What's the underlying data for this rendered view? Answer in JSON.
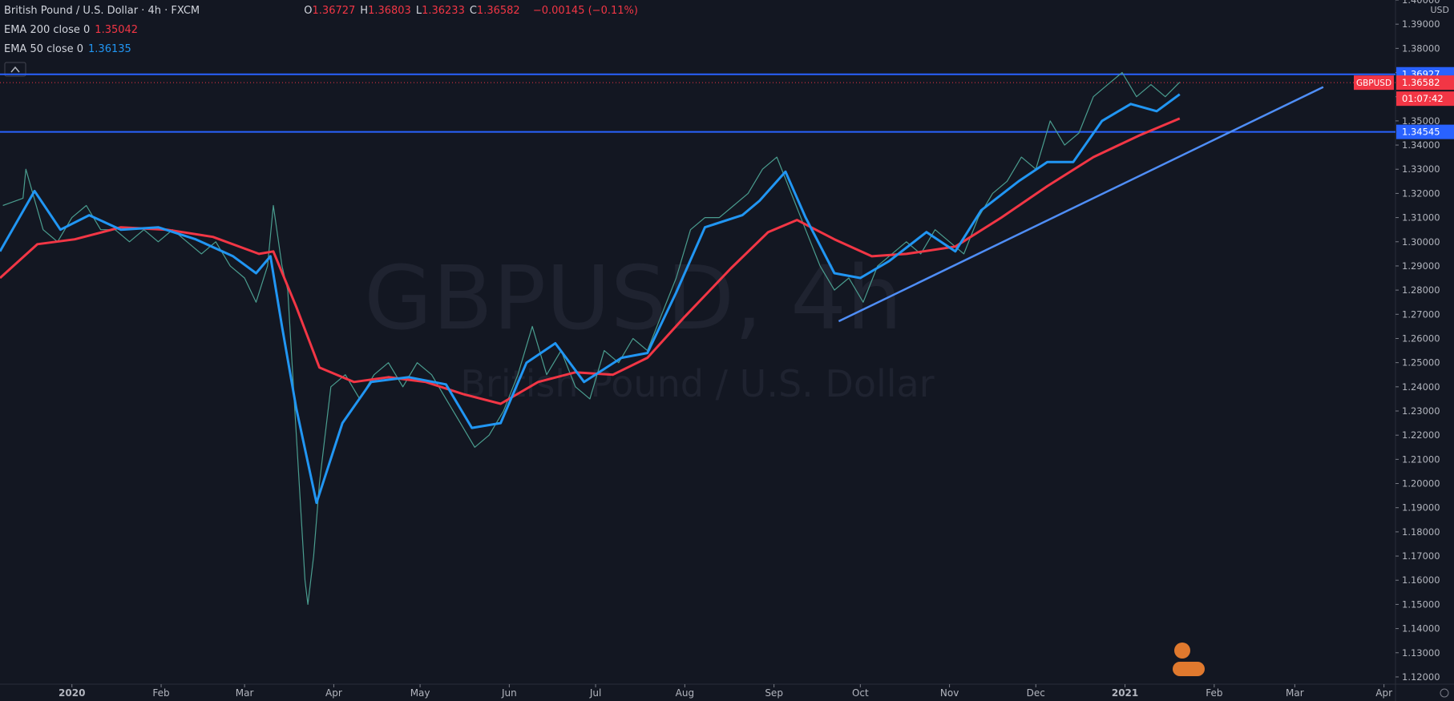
{
  "chart_data": {
    "type": "line",
    "title": "British Pound / U.S. Dollar · 4h · FXCM",
    "ohlc": [
      {
        "label": "O",
        "value": 1.36727
      },
      {
        "label": "H",
        "value": 1.36803
      },
      {
        "label": "L",
        "value": 1.36233
      },
      {
        "label": "C",
        "value": 1.36582
      }
    ],
    "change": "−0.00145 (−0.11%)",
    "watermark": {
      "symbol": "GBPUSD, 4h",
      "description": "British Pound / U.S. Dollar"
    },
    "currency": "USD",
    "countdown": "01:07:42",
    "xlim": [
      -25,
      460
    ],
    "xticks": [
      {
        "value": 0,
        "label": "2020"
      },
      {
        "value": 31,
        "label": "Feb"
      },
      {
        "value": 60,
        "label": "Mar"
      },
      {
        "value": 91,
        "label": "Apr"
      },
      {
        "value": 121,
        "label": "May"
      },
      {
        "value": 152,
        "label": "Jun"
      },
      {
        "value": 182,
        "label": "Jul"
      },
      {
        "value": 213,
        "label": "Aug"
      },
      {
        "value": 244,
        "label": "Sep"
      },
      {
        "value": 274,
        "label": "Oct"
      },
      {
        "value": 305,
        "label": "Nov"
      },
      {
        "value": 335,
        "label": "Dec"
      },
      {
        "value": 366,
        "label": "2021"
      },
      {
        "value": 397,
        "label": "Feb"
      },
      {
        "value": 425,
        "label": "Mar"
      },
      {
        "value": 456,
        "label": "Apr"
      }
    ],
    "ylim": [
      1.117,
      1.4
    ],
    "yticks": [
      {
        "value": 1.12,
        "label": "1.12000"
      },
      {
        "value": 1.13,
        "label": "1.13000"
      },
      {
        "value": 1.14,
        "label": "1.14000"
      },
      {
        "value": 1.15,
        "label": "1.15000"
      },
      {
        "value": 1.16,
        "label": "1.16000"
      },
      {
        "value": 1.17,
        "label": "1.17000"
      },
      {
        "value": 1.18,
        "label": "1.18000"
      },
      {
        "value": 1.19,
        "label": "1.19000"
      },
      {
        "value": 1.2,
        "label": "1.20000"
      },
      {
        "value": 1.21,
        "label": "1.21000"
      },
      {
        "value": 1.22,
        "label": "1.22000"
      },
      {
        "value": 1.23,
        "label": "1.23000"
      },
      {
        "value": 1.24,
        "label": "1.24000"
      },
      {
        "value": 1.25,
        "label": "1.25000"
      },
      {
        "value": 1.26,
        "label": "1.26000"
      },
      {
        "value": 1.27,
        "label": "1.27000"
      },
      {
        "value": 1.28,
        "label": "1.28000"
      },
      {
        "value": 1.29,
        "label": "1.29000"
      },
      {
        "value": 1.3,
        "label": "1.30000"
      },
      {
        "value": 1.31,
        "label": "1.31000"
      },
      {
        "value": 1.32,
        "label": "1.32000"
      },
      {
        "value": 1.33,
        "label": "1.33000"
      },
      {
        "value": 1.34,
        "label": "1.34000"
      },
      {
        "value": 1.35,
        "label": "1.35000"
      },
      {
        "value": 1.36,
        "label": "1.36000"
      },
      {
        "value": 1.37,
        "label": "1.37000"
      },
      {
        "value": 1.38,
        "label": "1.38000"
      },
      {
        "value": 1.39,
        "label": "1.39000"
      },
      {
        "value": 1.4,
        "label": "1.40000"
      }
    ],
    "series": [
      {
        "name": "GBPUSD",
        "color": "#4a9d8f",
        "last_value": 1.36582,
        "x": [
          -24,
          -17,
          -16,
          -10,
          -5,
          0,
          5,
          10,
          15,
          20,
          25,
          30,
          35,
          40,
          45,
          50,
          55,
          60,
          64,
          68,
          70,
          73,
          75,
          77,
          79,
          81,
          82,
          84,
          86,
          88,
          90,
          95,
          100,
          105,
          110,
          115,
          120,
          125,
          130,
          135,
          140,
          145,
          150,
          155,
          160,
          165,
          170,
          175,
          180,
          185,
          190,
          195,
          200,
          205,
          210,
          215,
          220,
          225,
          230,
          235,
          240,
          245,
          250,
          255,
          260,
          265,
          270,
          275,
          280,
          285,
          290,
          295,
          300,
          305,
          310,
          315,
          320,
          325,
          330,
          335,
          340,
          345,
          350,
          355,
          360,
          365,
          370,
          375,
          380,
          385
        ],
        "values": [
          1.315,
          1.318,
          1.33,
          1.305,
          1.3,
          1.31,
          1.315,
          1.305,
          1.305,
          1.3,
          1.305,
          1.3,
          1.305,
          1.3,
          1.295,
          1.3,
          1.29,
          1.285,
          1.275,
          1.29,
          1.315,
          1.29,
          1.28,
          1.24,
          1.2,
          1.16,
          1.15,
          1.17,
          1.2,
          1.22,
          1.24,
          1.245,
          1.235,
          1.245,
          1.25,
          1.24,
          1.25,
          1.245,
          1.235,
          1.225,
          1.215,
          1.22,
          1.23,
          1.245,
          1.265,
          1.245,
          1.255,
          1.24,
          1.235,
          1.255,
          1.25,
          1.26,
          1.255,
          1.27,
          1.285,
          1.305,
          1.31,
          1.31,
          1.315,
          1.32,
          1.33,
          1.335,
          1.32,
          1.305,
          1.29,
          1.28,
          1.285,
          1.275,
          1.29,
          1.295,
          1.3,
          1.295,
          1.305,
          1.3,
          1.295,
          1.31,
          1.32,
          1.325,
          1.335,
          1.33,
          1.35,
          1.34,
          1.345,
          1.36,
          1.365,
          1.37,
          1.36,
          1.365,
          1.36,
          1.366
        ]
      },
      {
        "name": "EMA 200 close 0",
        "color": "#f23645",
        "last_value": 1.35042,
        "x": [
          -25,
          -12,
          1,
          17,
          33,
          49,
          65,
          70,
          78,
          86,
          98,
          110,
          123,
          136,
          149,
          162,
          175,
          188,
          200,
          213,
          229,
          242,
          252,
          265,
          278,
          290,
          307,
          323,
          339,
          355,
          371,
          385
        ],
        "values": [
          1.285,
          1.299,
          1.301,
          1.306,
          1.305,
          1.302,
          1.295,
          1.296,
          1.273,
          1.248,
          1.242,
          1.244,
          1.242,
          1.237,
          1.233,
          1.242,
          1.246,
          1.245,
          1.252,
          1.269,
          1.289,
          1.304,
          1.309,
          1.301,
          1.294,
          1.295,
          1.298,
          1.31,
          1.323,
          1.335,
          1.344,
          1.351
        ]
      },
      {
        "name": "EMA 50 close 0",
        "color": "#2196f3",
        "last_value": 1.36135,
        "x": [
          -25,
          -13,
          -4,
          6,
          17,
          30,
          43,
          56,
          64,
          69,
          73,
          78,
          85,
          94,
          104,
          117,
          130,
          139,
          149,
          158,
          168,
          178,
          191,
          200,
          210,
          220,
          233,
          239,
          248,
          255,
          265,
          274,
          284,
          297,
          307,
          316,
          329,
          339,
          348,
          358,
          368,
          377,
          385
        ],
        "values": [
          1.296,
          1.321,
          1.305,
          1.311,
          1.305,
          1.306,
          1.301,
          1.294,
          1.287,
          1.294,
          1.265,
          1.231,
          1.192,
          1.225,
          1.242,
          1.244,
          1.241,
          1.223,
          1.225,
          1.25,
          1.258,
          1.242,
          1.252,
          1.254,
          1.279,
          1.306,
          1.311,
          1.317,
          1.329,
          1.31,
          1.287,
          1.285,
          1.292,
          1.304,
          1.296,
          1.313,
          1.325,
          1.333,
          1.333,
          1.35,
          1.357,
          1.354,
          1.361
        ]
      }
    ],
    "levels": [
      {
        "value": 1.36927,
        "color": "#2962ff"
      },
      {
        "value": 1.34545,
        "color": "#2962ff"
      }
    ],
    "trendline": {
      "x": [
        266.5,
        434.9
      ],
      "y": [
        1.2671,
        1.364
      ],
      "color": "#4f8ef7"
    }
  }
}
